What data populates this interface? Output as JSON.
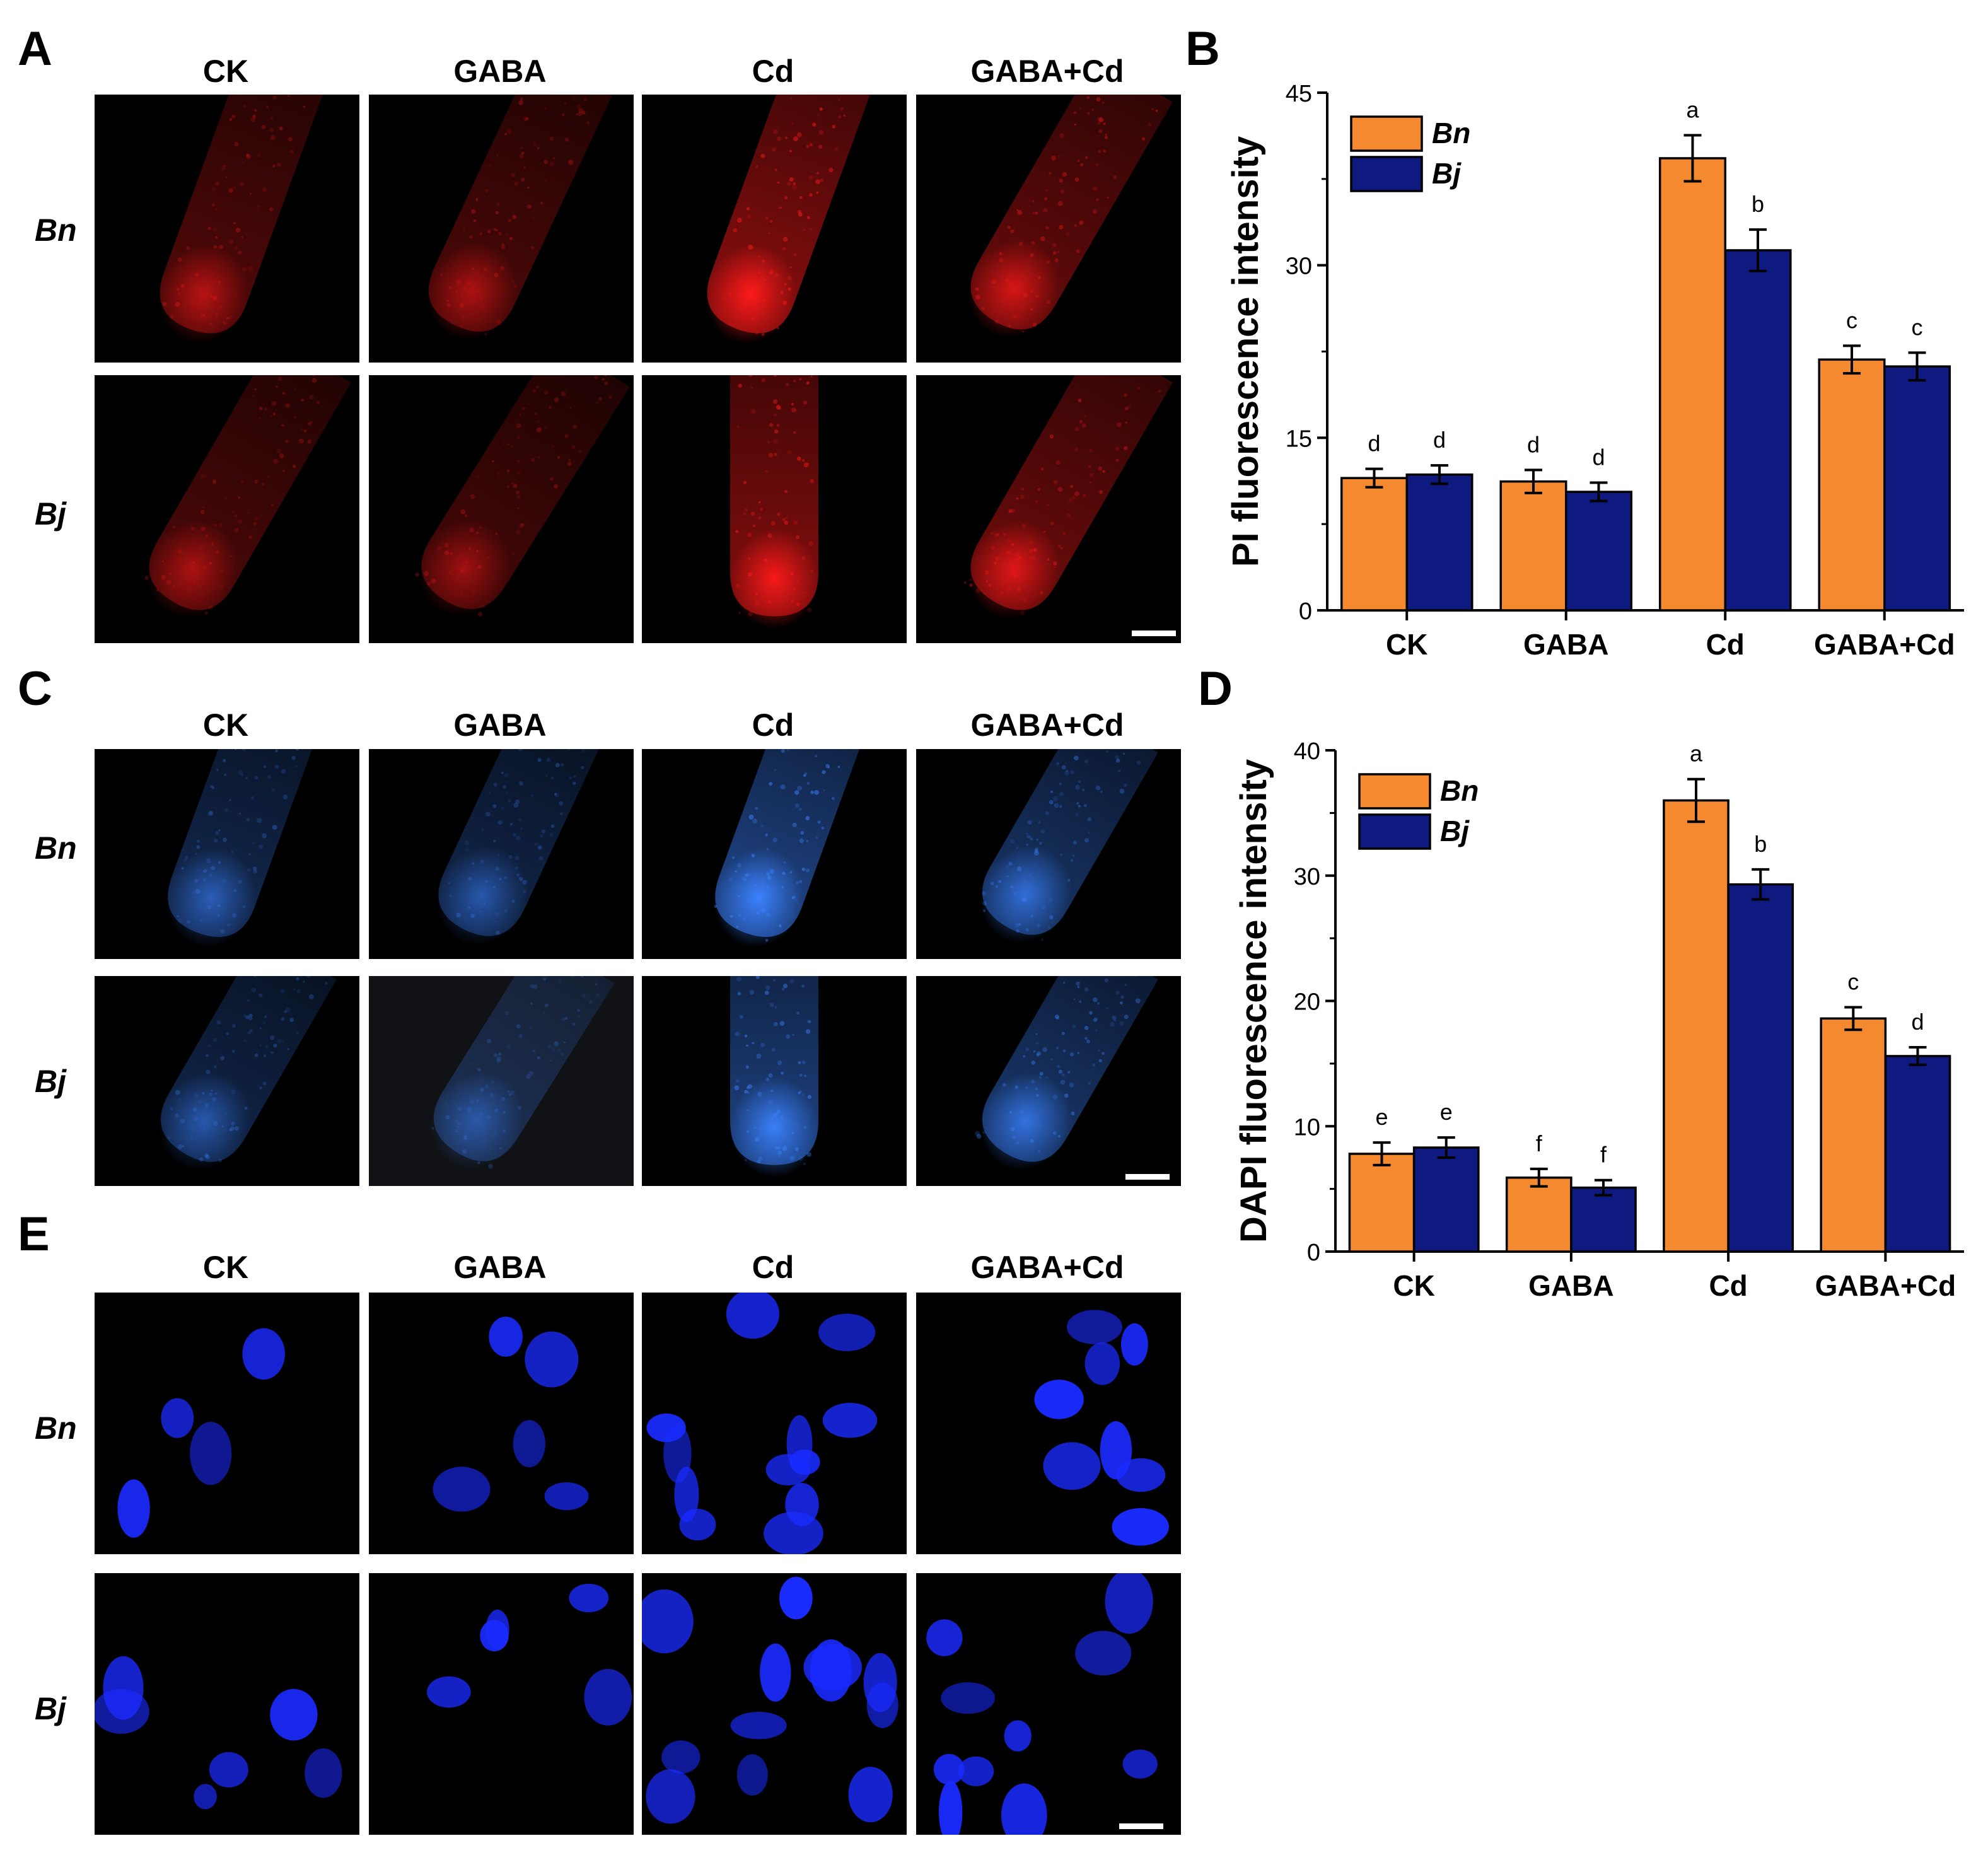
{
  "panels": {
    "a": {
      "letter": "A",
      "columns": [
        "CK",
        "GABA",
        "Cd",
        "GABA+Cd"
      ],
      "rows": [
        "Bn",
        "Bj"
      ],
      "color": "#ff1a1a"
    },
    "b": {
      "letter": "B"
    },
    "c": {
      "letter": "C",
      "columns": [
        "CK",
        "GABA",
        "Cd",
        "GABA+Cd"
      ],
      "rows": [
        "Bn",
        "Bj"
      ],
      "color": "#3b82ff"
    },
    "d": {
      "letter": "D"
    },
    "e": {
      "letter": "E",
      "columns": [
        "CK",
        "GABA",
        "Cd",
        "GABA+Cd"
      ],
      "rows": [
        "Bn",
        "Bj"
      ],
      "color": "#1a2bff"
    }
  },
  "colors": {
    "bn": "#f5892f",
    "bj": "#0e1a80"
  },
  "chart_data": [
    {
      "type": "bar",
      "panel": "B",
      "categories": [
        "CK",
        "GABA",
        "Cd",
        "GABA+Cd"
      ],
      "ylabel": "PI fluorescence intensity",
      "xlabel": "",
      "ylim": [
        0,
        45
      ],
      "yticks": [
        "0",
        "15",
        "30",
        "45"
      ],
      "legend": "top-left",
      "series": [
        {
          "name": "Bn",
          "values": [
            11.5,
            11.2,
            39.3,
            21.8
          ],
          "errors": [
            0.8,
            1.0,
            2.0,
            1.2
          ],
          "letters": [
            "d",
            "d",
            "a",
            "c"
          ]
        },
        {
          "name": "Bj",
          "values": [
            11.8,
            10.3,
            31.3,
            21.2
          ],
          "errors": [
            0.8,
            0.8,
            1.8,
            1.2
          ],
          "letters": [
            "d",
            "d",
            "b",
            "c"
          ]
        }
      ]
    },
    {
      "type": "bar",
      "panel": "D",
      "categories": [
        "CK",
        "GABA",
        "Cd",
        "GABA+Cd"
      ],
      "ylabel": "DAPI fluorescence intensity",
      "xlabel": "",
      "ylim": [
        0,
        40
      ],
      "yticks": [
        "0",
        "10",
        "20",
        "30",
        "40"
      ],
      "legend": "top-left",
      "series": [
        {
          "name": "Bn",
          "values": [
            7.8,
            5.9,
            36.0,
            18.6
          ],
          "errors": [
            0.9,
            0.7,
            1.7,
            0.9
          ],
          "letters": [
            "e",
            "f",
            "a",
            "c"
          ]
        },
        {
          "name": "Bj",
          "values": [
            8.3,
            5.1,
            29.3,
            15.6
          ],
          "errors": [
            0.8,
            0.6,
            1.2,
            0.7
          ],
          "letters": [
            "e",
            "f",
            "b",
            "d"
          ]
        }
      ]
    }
  ]
}
